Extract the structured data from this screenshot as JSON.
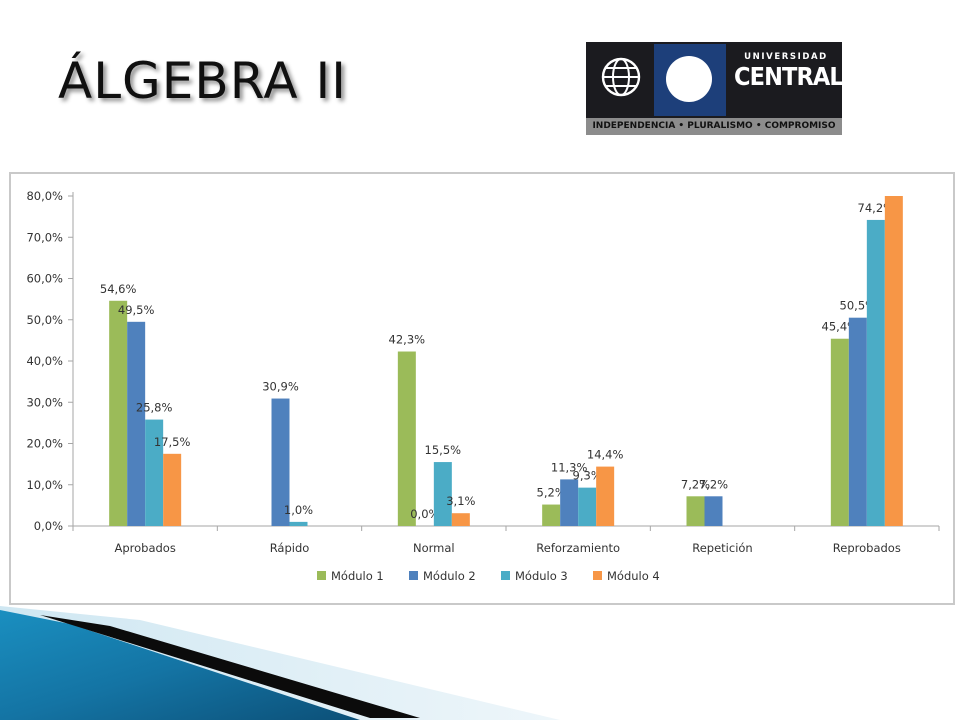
{
  "slide": {
    "title": "ÁLGEBRA II"
  },
  "logo": {
    "name_top": "UNIVERSIDAD",
    "name_main": "CENTRAL",
    "tagline": "INDEPENDENCIA • PLURALISMO • COMPROMISO"
  },
  "chart_data": {
    "type": "bar",
    "title": "",
    "xlabel": "",
    "ylabel": "",
    "ylim": [
      0,
      80
    ],
    "ytick_values": [
      0,
      10,
      20,
      30,
      40,
      50,
      60,
      70,
      80
    ],
    "ytick_labels": [
      "0,0%",
      "10,0%",
      "20,0%",
      "30,0%",
      "40,0%",
      "50,0%",
      "60,0%",
      "70,0%",
      "80,0%"
    ],
    "grid": false,
    "legend_position": "bottom",
    "categories": [
      "Aprobados",
      "Rápido",
      "Normal",
      "Reforzamiento",
      "Repetición",
      "Reprobados"
    ],
    "series": [
      {
        "name": "Módulo 1",
        "color": "#9bbb59",
        "values": [
          54.6,
          null,
          42.3,
          5.2,
          7.2,
          45.4
        ],
        "labels": [
          "54,6%",
          "",
          "42,3%",
          "5,2%",
          "7,2%",
          "45,4%"
        ]
      },
      {
        "name": "Módulo 2",
        "color": "#4f81bd",
        "values": [
          49.5,
          30.9,
          0.0,
          11.3,
          7.2,
          50.5
        ],
        "labels": [
          "49,5%",
          "30,9%",
          "0,0%",
          "11,3%",
          "7,2%",
          "50,5%"
        ]
      },
      {
        "name": "Módulo 3",
        "color": "#4bacc6",
        "values": [
          25.8,
          1.0,
          15.5,
          9.3,
          null,
          74.2
        ],
        "labels": [
          "25,8%",
          "1,0%",
          "15,5%",
          "9,3%",
          "",
          "74,2%"
        ]
      },
      {
        "name": "Módulo 4",
        "color": "#f79646",
        "values": [
          17.5,
          null,
          3.1,
          14.4,
          null,
          80.0
        ],
        "labels": [
          "17,5%",
          "",
          "3,1%",
          "14,4%",
          "",
          ""
        ]
      }
    ]
  }
}
